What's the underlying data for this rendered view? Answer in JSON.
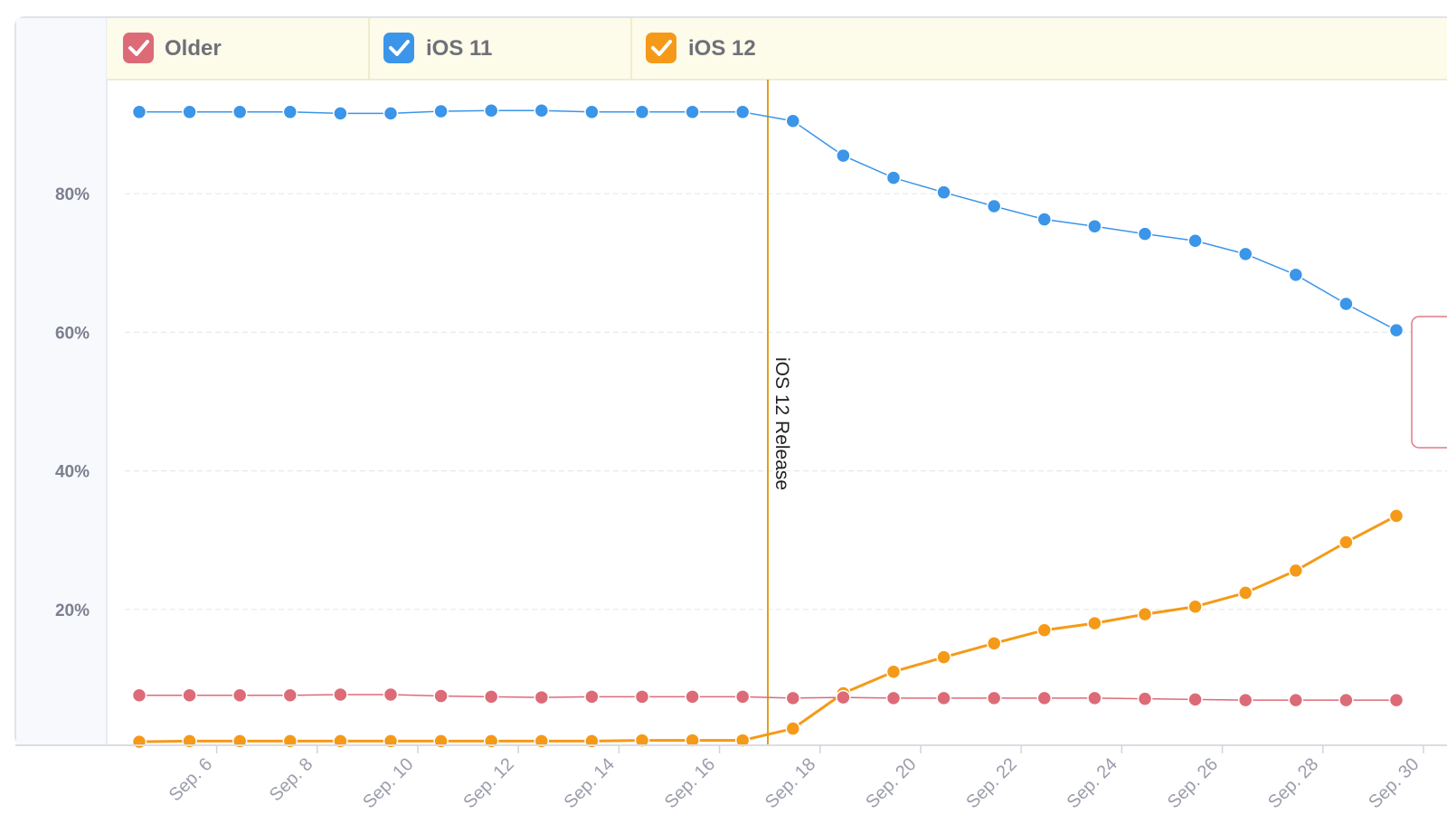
{
  "legend": {
    "items": [
      {
        "label": "Older",
        "color": "#dc6b77",
        "checked": true
      },
      {
        "label": "iOS 11",
        "color": "#3b95e8",
        "checked": true
      },
      {
        "label": "iOS 12",
        "color": "#f59a18",
        "checked": true
      }
    ]
  },
  "chart_data": {
    "type": "line",
    "x": [
      "Sep. 5",
      "Sep. 6",
      "Sep. 7",
      "Sep. 8",
      "Sep. 9",
      "Sep. 10",
      "Sep. 11",
      "Sep. 12",
      "Sep. 13",
      "Sep. 14",
      "Sep. 15",
      "Sep. 16",
      "Sep. 17",
      "Sep. 18",
      "Sep. 19",
      "Sep. 20",
      "Sep. 21",
      "Sep. 22",
      "Sep. 23",
      "Sep. 24",
      "Sep. 25",
      "Sep. 26",
      "Sep. 27",
      "Sep. 28",
      "Sep. 29",
      "Sep. 30"
    ],
    "x_tick_labels": [
      "Sep. 6",
      "Sep. 8",
      "Sep. 10",
      "Sep. 12",
      "Sep. 14",
      "Sep. 16",
      "Sep. 18",
      "Sep. 20",
      "Sep. 22",
      "Sep. 24",
      "Sep. 26",
      "Sep. 28",
      "Sep. 30"
    ],
    "y_tick_labels": [
      "20%",
      "40%",
      "60%",
      "80%"
    ],
    "ylim": [
      0,
      100
    ],
    "y_unit": "%",
    "grid": true,
    "legend_position": "top",
    "series": [
      {
        "name": "iOS 11",
        "color": "#3b95e8",
        "line_width": 1.5,
        "values": [
          91.8,
          91.8,
          91.8,
          91.8,
          91.6,
          91.6,
          91.9,
          92.0,
          92.0,
          91.8,
          91.8,
          91.8,
          91.8,
          90.5,
          85.5,
          82.3,
          80.2,
          78.2,
          76.3,
          75.3,
          74.2,
          73.2,
          71.3,
          68.3,
          64.1,
          60.3
        ]
      },
      {
        "name": "iOS 12",
        "color": "#f59a18",
        "line_width": 3,
        "values": [
          0.9,
          1.0,
          1.0,
          1.0,
          1.0,
          1.0,
          1.0,
          1.0,
          1.0,
          1.0,
          1.1,
          1.1,
          1.1,
          2.8,
          7.9,
          11.0,
          13.1,
          15.1,
          17.0,
          18.0,
          19.3,
          20.4,
          22.4,
          25.6,
          29.7,
          33.5
        ]
      },
      {
        "name": "Older",
        "color": "#dc6b77",
        "line_width": 1.5,
        "values": [
          7.6,
          7.6,
          7.6,
          7.6,
          7.7,
          7.7,
          7.5,
          7.4,
          7.3,
          7.4,
          7.4,
          7.4,
          7.4,
          7.2,
          7.3,
          7.2,
          7.2,
          7.2,
          7.2,
          7.2,
          7.1,
          7.0,
          6.9,
          6.9,
          6.9,
          6.9
        ]
      }
    ],
    "annotations": [
      {
        "label": "iOS 12 Release",
        "x_between": [
          "Sep. 17",
          "Sep. 18"
        ],
        "color": "#e0a020"
      }
    ]
  }
}
